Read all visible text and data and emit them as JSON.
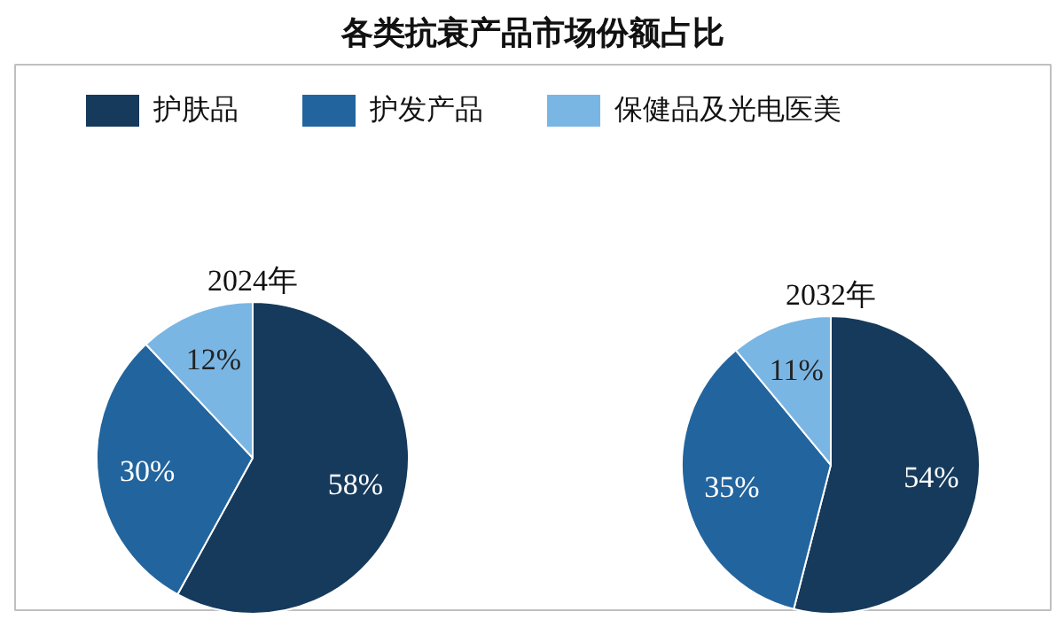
{
  "chart_data": [
    {
      "type": "pie",
      "title": "各类抗衰产品市场份额占比",
      "subtitle": "2024年",
      "categories": [
        "护肤品",
        "护发产品",
        "保健品及光电医美"
      ],
      "values": [
        58,
        30,
        12
      ],
      "colors": [
        "#163a5c",
        "#22649e",
        "#7ab6e4"
      ],
      "value_labels": [
        "58%",
        "30%",
        "12%"
      ],
      "legend": "top"
    },
    {
      "type": "pie",
      "subtitle": "2032年",
      "values": [
        54,
        35,
        11
      ],
      "colors": [
        "#163a5c",
        "#22649e",
        "#7ab6e4"
      ],
      "value_labels": [
        "54%",
        "35%",
        "11%"
      ]
    }
  ]
}
